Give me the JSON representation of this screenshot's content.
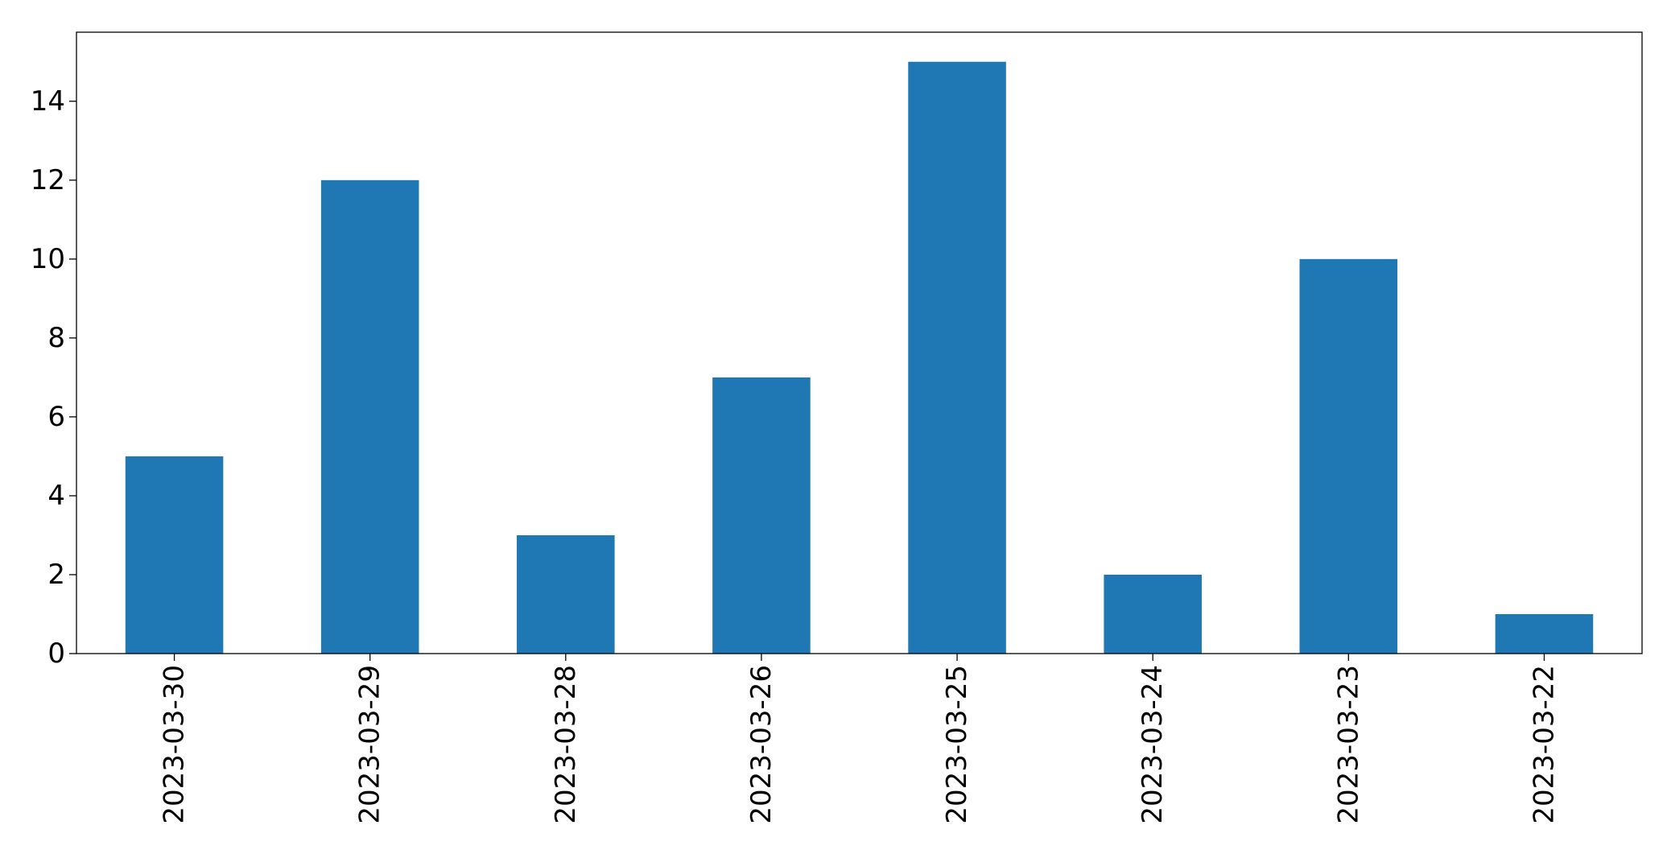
{
  "chart_data": {
    "type": "bar",
    "categories": [
      "2023-03-30",
      "2023-03-29",
      "2023-03-28",
      "2023-03-26",
      "2023-03-25",
      "2023-03-24",
      "2023-03-23",
      "2023-03-22"
    ],
    "values": [
      5,
      12,
      3,
      7,
      15,
      2,
      10,
      1
    ],
    "title": "",
    "xlabel": "",
    "ylabel": "",
    "ylim": [
      0,
      15.75
    ],
    "yticks": [
      0,
      2,
      4,
      6,
      8,
      10,
      12,
      14
    ],
    "bar_color": "#1f77b4",
    "grid": false,
    "legend": "none"
  }
}
